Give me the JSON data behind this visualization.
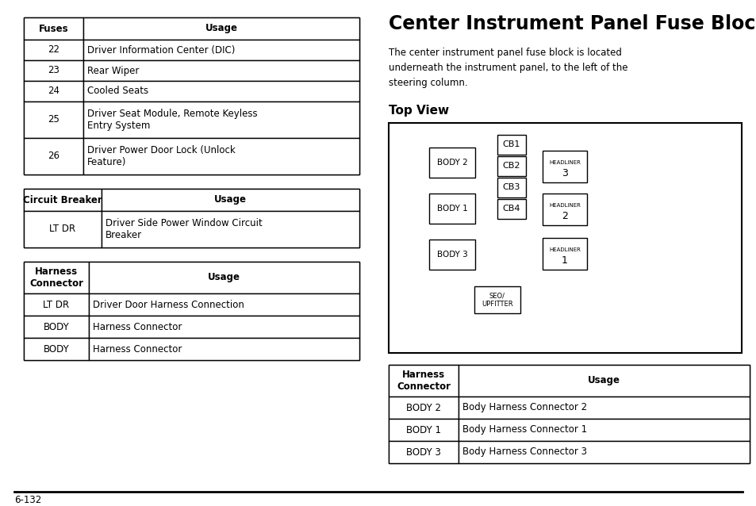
{
  "title": "Center Instrument Panel Fuse Block",
  "description": "The center instrument panel fuse block is located\nunderneath the instrument panel, to the left of the\nsteering column.",
  "top_view_title": "Top View",
  "page_number": "6-132",
  "fuses_table": {
    "headers": [
      "Fuses",
      "Usage"
    ],
    "rows": [
      [
        "22",
        "Driver Information Center (DIC)"
      ],
      [
        "23",
        "Rear Wiper"
      ],
      [
        "24",
        "Cooled Seats"
      ],
      [
        "25",
        "Driver Seat Module, Remote Keyless\nEntry System"
      ],
      [
        "26",
        "Driver Power Door Lock (Unlock\nFeature)"
      ]
    ]
  },
  "circuit_breaker_table": {
    "headers": [
      "Circuit Breaker",
      "Usage"
    ],
    "rows": [
      [
        "LT DR",
        "Driver Side Power Window Circuit\nBreaker"
      ]
    ]
  },
  "harness_table_left": {
    "headers": [
      "Harness\nConnector",
      "Usage"
    ],
    "rows": [
      [
        "LT DR",
        "Driver Door Harness Connection"
      ],
      [
        "BODY",
        "Harness Connector"
      ],
      [
        "BODY",
        "Harness Connector"
      ]
    ]
  },
  "harness_table_right": {
    "headers": [
      "Harness\nConnector",
      "Usage"
    ],
    "rows": [
      [
        "BODY 2",
        "Body Harness Connector 2"
      ],
      [
        "BODY 1",
        "Body Harness Connector 1"
      ],
      [
        "BODY 3",
        "Body Harness Connector 3"
      ]
    ]
  },
  "bg_color": "#ffffff",
  "text_color": "#000000"
}
